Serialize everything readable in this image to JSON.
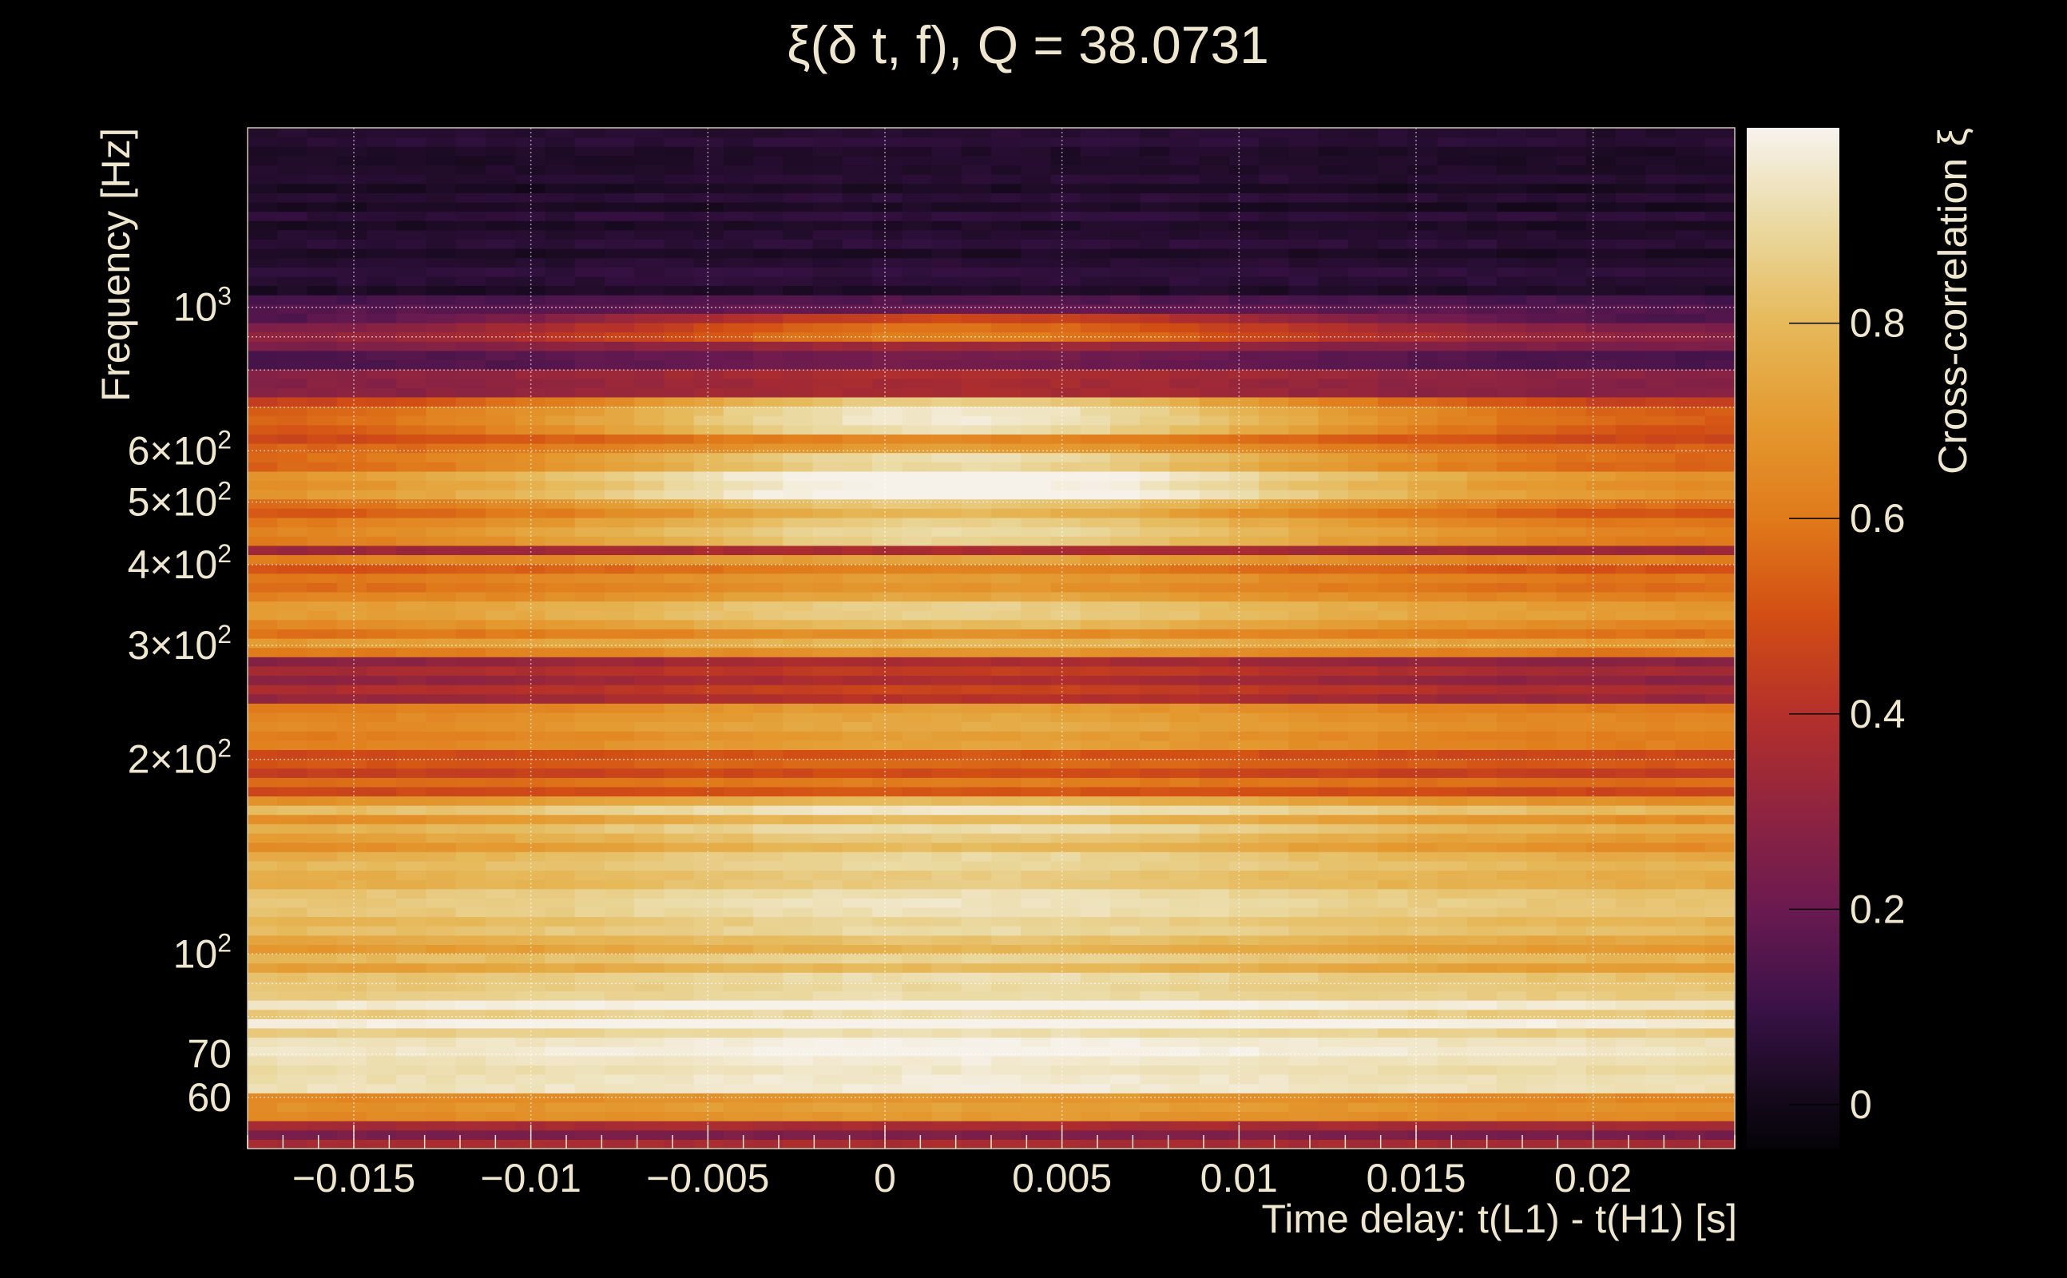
{
  "chart_data": {
    "type": "heatmap",
    "title": "ξ(δ t, f), Q = 38.0731",
    "xlabel": "Time delay: t(L1) - t(H1) [s]",
    "ylabel": "Frequency [Hz]",
    "xlim": [
      -0.018,
      0.024
    ],
    "ylim": [
      50,
      1895
    ],
    "yscale": "log",
    "grid": true,
    "x_ticks": [
      {
        "value": -0.015,
        "label": "−0.015"
      },
      {
        "value": -0.01,
        "label": "−0.01"
      },
      {
        "value": -0.005,
        "label": "−0.005"
      },
      {
        "value": 0,
        "label": "0"
      },
      {
        "value": 0.005,
        "label": "0.005"
      },
      {
        "value": 0.01,
        "label": "0.01"
      },
      {
        "value": 0.015,
        "label": "0.015"
      },
      {
        "value": 0.02,
        "label": "0.02"
      }
    ],
    "y_ticks": [
      {
        "value": 1000,
        "label": "10",
        "exp": "3"
      },
      {
        "value": 600,
        "label": "6×10",
        "exp": "2"
      },
      {
        "value": 500,
        "label": "5×10",
        "exp": "2"
      },
      {
        "value": 400,
        "label": "4×10",
        "exp": "2"
      },
      {
        "value": 300,
        "label": "3×10",
        "exp": "2"
      },
      {
        "value": 200,
        "label": "2×10",
        "exp": "2"
      },
      {
        "value": 100,
        "label": "10",
        "exp": "2"
      },
      {
        "value": 70,
        "label": "70",
        "exp": ""
      },
      {
        "value": 60,
        "label": "60",
        "exp": ""
      }
    ],
    "y_grid": [
      1000,
      900,
      800,
      700,
      600,
      500,
      400,
      300,
      200,
      100,
      90,
      80,
      70,
      60
    ],
    "peak_time": 0.002,
    "peak_width": 0.012,
    "bands": [
      {
        "fmin": 50,
        "fmax": 55.5,
        "center": 0.32,
        "edge": 0.3
      },
      {
        "fmin": 55.5,
        "fmax": 61,
        "center": 0.68,
        "edge": 0.62
      },
      {
        "fmin": 61,
        "fmax": 70,
        "center": 0.9,
        "edge": 0.85
      },
      {
        "fmin": 70,
        "fmax": 90,
        "center": 0.97,
        "edge": 0.9
      },
      {
        "fmin": 90,
        "fmax": 112,
        "center": 0.85,
        "edge": 0.75
      },
      {
        "fmin": 112,
        "fmax": 141,
        "center": 0.93,
        "edge": 0.82
      },
      {
        "fmin": 141,
        "fmax": 178,
        "center": 0.88,
        "edge": 0.72
      },
      {
        "fmin": 178,
        "fmax": 205,
        "center": 0.55,
        "edge": 0.5
      },
      {
        "fmin": 205,
        "fmax": 248,
        "center": 0.72,
        "edge": 0.6
      },
      {
        "fmin": 248,
        "fmax": 285,
        "center": 0.45,
        "edge": 0.35
      },
      {
        "fmin": 285,
        "fmax": 313,
        "center": 0.72,
        "edge": 0.62
      },
      {
        "fmin": 313,
        "fmax": 352,
        "center": 0.88,
        "edge": 0.7
      },
      {
        "fmin": 352,
        "fmax": 415,
        "center": 0.68,
        "edge": 0.55
      },
      {
        "fmin": 415,
        "fmax": 435,
        "center": 0.35,
        "edge": 0.3
      },
      {
        "fmin": 435,
        "fmax": 513,
        "center": 0.85,
        "edge": 0.55
      },
      {
        "fmin": 513,
        "fmax": 590,
        "center": 0.98,
        "edge": 0.6
      },
      {
        "fmin": 590,
        "fmax": 634,
        "center": 0.68,
        "edge": 0.5
      },
      {
        "fmin": 634,
        "fmax": 730,
        "center": 0.9,
        "edge": 0.45
      },
      {
        "fmin": 730,
        "fmax": 881,
        "center": 0.3,
        "edge": 0.2
      },
      {
        "fmin": 881,
        "fmax": 968,
        "center": 0.55,
        "edge": 0.2
      },
      {
        "fmin": 968,
        "fmax": 1038,
        "center": 0.15,
        "edge": 0.12
      },
      {
        "fmin": 1038,
        "fmax": 1895,
        "center": 0.05,
        "edge": 0.04
      }
    ],
    "colorbar": {
      "label": "Cross-correlation ξ",
      "range": [
        -0.045,
        1.0
      ],
      "ticks": [
        {
          "value": 0,
          "label": "0"
        },
        {
          "value": 0.2,
          "label": "0.2"
        },
        {
          "value": 0.4,
          "label": "0.4"
        },
        {
          "value": 0.6,
          "label": "0.6"
        },
        {
          "value": 0.8,
          "label": "0.8"
        }
      ],
      "colormap": [
        {
          "v": -0.045,
          "c": "#050308"
        },
        {
          "v": 0.0,
          "c": "#120818"
        },
        {
          "v": 0.1,
          "c": "#3a1248"
        },
        {
          "v": 0.2,
          "c": "#6a1a50"
        },
        {
          "v": 0.3,
          "c": "#8f2440"
        },
        {
          "v": 0.4,
          "c": "#b5302a"
        },
        {
          "v": 0.5,
          "c": "#d24e14"
        },
        {
          "v": 0.6,
          "c": "#e07a1a"
        },
        {
          "v": 0.7,
          "c": "#e49a30"
        },
        {
          "v": 0.8,
          "c": "#e6b95a"
        },
        {
          "v": 0.9,
          "c": "#ead9a0"
        },
        {
          "v": 1.0,
          "c": "#f7f3ee"
        }
      ]
    }
  }
}
